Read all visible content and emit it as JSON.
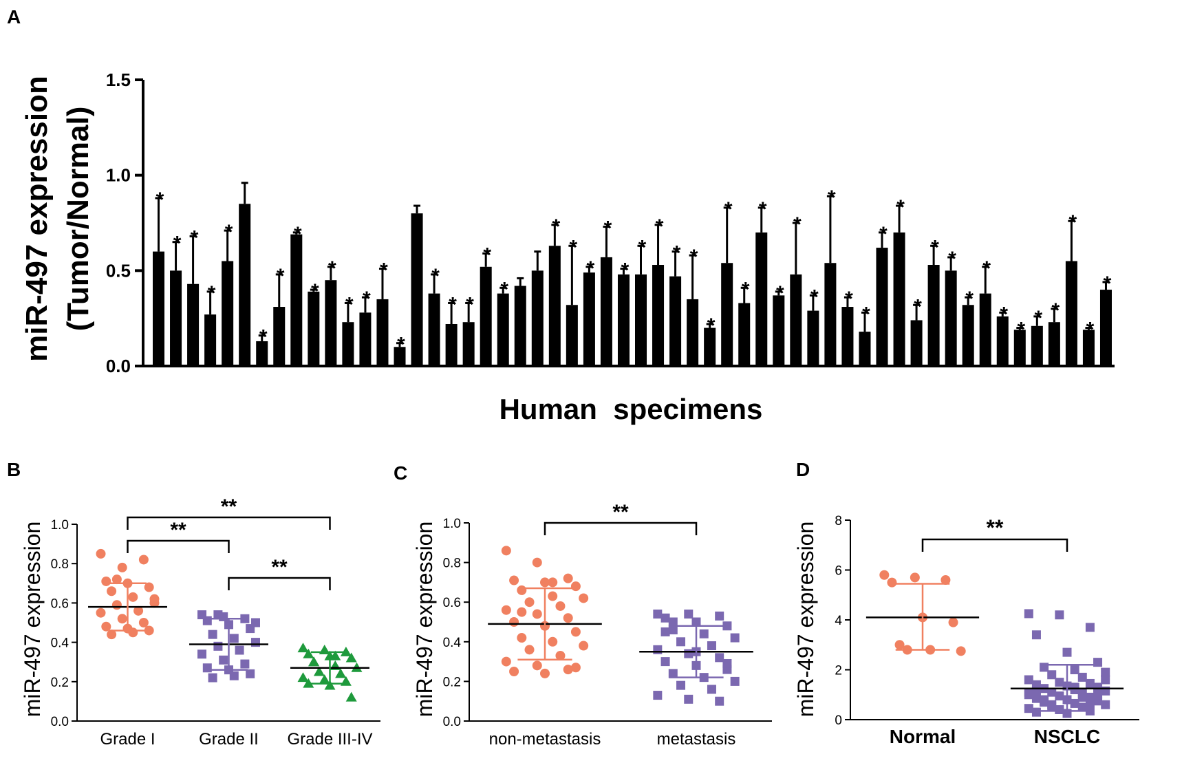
{
  "chart_data": [
    {
      "panel": "A",
      "type": "bar",
      "title": "",
      "xlabel": "Human  specimens",
      "ylabel_line1": "miR-497 expression",
      "ylabel_line2": "(Tumor/Normal)",
      "ylim": [
        0,
        1.5
      ],
      "yticks": [
        "0.0",
        "0.5",
        "1.0",
        "1.5"
      ],
      "significance_symbol": "*",
      "values": [
        0.6,
        0.5,
        0.43,
        0.27,
        0.55,
        0.85,
        0.13,
        0.31,
        0.69,
        0.39,
        0.45,
        0.23,
        0.28,
        0.35,
        0.1,
        0.8,
        0.38,
        0.22,
        0.23,
        0.52,
        0.38,
        0.42,
        0.5,
        0.63,
        0.32,
        0.49,
        0.57,
        0.48,
        0.48,
        0.53,
        0.47,
        0.35,
        0.2,
        0.54,
        0.33,
        0.7,
        0.37,
        0.48,
        0.29,
        0.54,
        0.31,
        0.18,
        0.62,
        0.7,
        0.24,
        0.53,
        0.5,
        0.32,
        0.38,
        0.26,
        0.19,
        0.21,
        0.23,
        0.55,
        0.19,
        0.4
      ],
      "errors": [
        0.28,
        0.15,
        0.25,
        0.12,
        0.16,
        0.11,
        0.03,
        0.17,
        0.01,
        0.01,
        0.07,
        0.1,
        0.08,
        0.16,
        0.02,
        0.04,
        0.1,
        0.11,
        0.1,
        0.07,
        0.03,
        0.04,
        0.1,
        0.11,
        0.31,
        0.03,
        0.16,
        0.03,
        0.15,
        0.21,
        0.13,
        0.23,
        0.02,
        0.29,
        0.08,
        0.13,
        0.02,
        0.27,
        0.08,
        0.35,
        0.05,
        0.1,
        0.08,
        0.14,
        0.08,
        0.1,
        0.07,
        0.04,
        0.14,
        0.02,
        0.01,
        0.05,
        0.07,
        0.21,
        0.01,
        0.04
      ],
      "significant": [
        true,
        true,
        true,
        true,
        true,
        false,
        true,
        true,
        true,
        true,
        true,
        true,
        true,
        true,
        true,
        false,
        true,
        true,
        true,
        true,
        true,
        false,
        false,
        true,
        true,
        true,
        true,
        true,
        true,
        true,
        true,
        true,
        true,
        true,
        true,
        true,
        true,
        true,
        true,
        true,
        true,
        true,
        true,
        true,
        true,
        true,
        true,
        true,
        true,
        true,
        true,
        true,
        true,
        true,
        true,
        true
      ]
    },
    {
      "panel": "B",
      "type": "scatter",
      "ylabel": "miR-497 expression",
      "categories": [
        "Grade I",
        "Grade II",
        "Grade III-IV"
      ],
      "ylim": [
        0,
        1.0
      ],
      "yticks": [
        "0.0",
        "0.2",
        "0.4",
        "0.6",
        "0.8",
        "1.0"
      ],
      "series": [
        {
          "name": "Grade I",
          "color": "#f08060",
          "marker": "circle",
          "mean": 0.58,
          "sd_low": 0.46,
          "sd_high": 0.7,
          "values": [
            0.85,
            0.78,
            0.82,
            0.71,
            0.7,
            0.68,
            0.66,
            0.63,
            0.6,
            0.59,
            0.56,
            0.55,
            0.52,
            0.5,
            0.48,
            0.47,
            0.46,
            0.44,
            0.45,
            0.62,
            0.72
          ]
        },
        {
          "name": "Grade II",
          "color": "#7b68b0",
          "marker": "square",
          "mean": 0.39,
          "sd_low": 0.26,
          "sd_high": 0.52,
          "values": [
            0.54,
            0.53,
            0.52,
            0.51,
            0.49,
            0.47,
            0.44,
            0.42,
            0.4,
            0.38,
            0.36,
            0.34,
            0.31,
            0.29,
            0.27,
            0.26,
            0.24,
            0.22,
            0.23,
            0.5,
            0.54
          ]
        },
        {
          "name": "Grade III-IV",
          "color": "#1e9a3c",
          "marker": "triangle",
          "mean": 0.27,
          "sd_low": 0.19,
          "sd_high": 0.35,
          "values": [
            0.37,
            0.36,
            0.35,
            0.34,
            0.33,
            0.32,
            0.3,
            0.28,
            0.27,
            0.25,
            0.24,
            0.22,
            0.21,
            0.2,
            0.19,
            0.18,
            0.12,
            0.3,
            0.33
          ]
        }
      ],
      "brackets": [
        {
          "from": 0,
          "to": 2,
          "label": "**"
        },
        {
          "from": 0,
          "to": 1,
          "label": "**"
        },
        {
          "from": 1,
          "to": 2,
          "label": "**"
        }
      ]
    },
    {
      "panel": "C",
      "type": "scatter",
      "ylabel": "miR-497 expression",
      "categories": [
        "non-metastasis",
        "metastasis"
      ],
      "ylim": [
        0,
        1.0
      ],
      "yticks": [
        "0.0",
        "0.2",
        "0.4",
        "0.6",
        "0.8",
        "1.0"
      ],
      "series": [
        {
          "name": "non-metastasis",
          "color": "#f08060",
          "marker": "circle",
          "mean": 0.49,
          "sd_low": 0.31,
          "sd_high": 0.67,
          "values": [
            0.86,
            0.8,
            0.72,
            0.71,
            0.7,
            0.68,
            0.66,
            0.63,
            0.62,
            0.6,
            0.58,
            0.56,
            0.54,
            0.52,
            0.5,
            0.48,
            0.45,
            0.42,
            0.4,
            0.38,
            0.36,
            0.33,
            0.3,
            0.28,
            0.26,
            0.25,
            0.24,
            0.27,
            0.55,
            0.7
          ]
        },
        {
          "name": "metastasis",
          "color": "#7b68b0",
          "marker": "square",
          "mean": 0.35,
          "sd_low": 0.22,
          "sd_high": 0.48,
          "values": [
            0.54,
            0.54,
            0.53,
            0.52,
            0.5,
            0.48,
            0.46,
            0.44,
            0.42,
            0.4,
            0.38,
            0.36,
            0.34,
            0.32,
            0.3,
            0.28,
            0.26,
            0.24,
            0.22,
            0.2,
            0.18,
            0.16,
            0.13,
            0.11,
            0.1,
            0.45,
            0.35,
            0.29,
            0.5
          ]
        }
      ],
      "brackets": [
        {
          "from": 0,
          "to": 1,
          "label": "**"
        }
      ]
    },
    {
      "panel": "D",
      "type": "scatter",
      "ylabel": "miR-497 expression",
      "categories": [
        "Normal",
        "NSCLC"
      ],
      "ylim": [
        0,
        8
      ],
      "yticks": [
        "0",
        "2",
        "4",
        "6",
        "8"
      ],
      "series": [
        {
          "name": "Normal",
          "color": "#f08060",
          "marker": "circle",
          "mean": 4.1,
          "sd_low": 2.8,
          "sd_high": 5.45,
          "values": [
            5.8,
            5.7,
            5.6,
            5.5,
            4.1,
            3.9,
            3.0,
            2.8,
            2.75,
            2.8
          ]
        },
        {
          "name": "NSCLC",
          "color": "#7b68b0",
          "marker": "square",
          "mean": 1.25,
          "sd_low": 0.35,
          "sd_high": 2.2,
          "values": [
            4.25,
            4.2,
            3.7,
            3.4,
            2.7,
            2.3,
            2.1,
            2.0,
            1.9,
            1.8,
            1.7,
            1.6,
            1.5,
            1.45,
            1.4,
            1.35,
            1.3,
            1.25,
            1.2,
            1.15,
            1.1,
            1.05,
            1.0,
            0.95,
            0.9,
            0.85,
            0.8,
            0.75,
            0.7,
            0.65,
            0.6,
            0.55,
            0.5,
            0.45,
            0.4,
            0.35,
            0.3,
            0.25,
            1.0,
            0.8,
            1.3,
            1.6,
            0.6,
            0.9,
            1.1,
            0.4,
            0.7,
            1.2
          ]
        }
      ],
      "brackets": [
        {
          "from": 0,
          "to": 1,
          "label": "**"
        }
      ]
    }
  ],
  "panel_labels": [
    "A",
    "B",
    "C",
    "D"
  ]
}
